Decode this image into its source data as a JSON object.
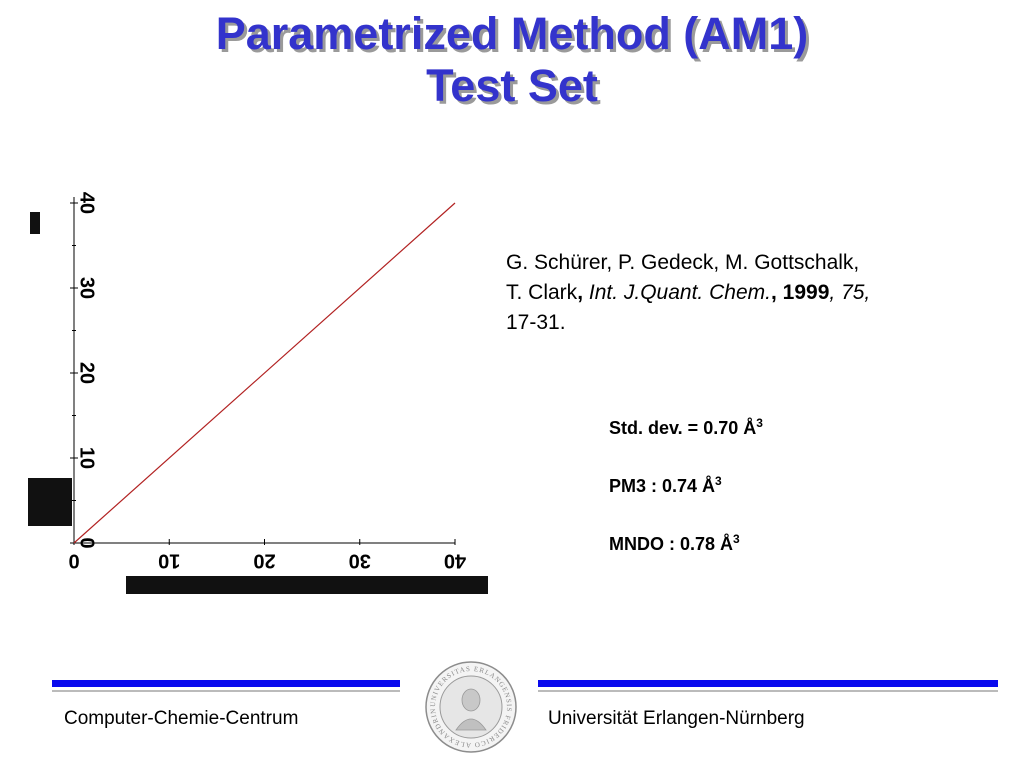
{
  "slide": {
    "title_line1": "Parametrized Method (AM1)",
    "title_line2": "Test Set"
  },
  "citation": {
    "authors_line1": "G. Schürer, P. Gedeck, M. Gottschalk,",
    "authors_line2_prefix": "T. Clark",
    "comma_bold": ",",
    "journal": "Int. J.Quant. Chem.",
    "comma_bold2": ",",
    "year": "1999",
    "comma_italic": ",",
    "volume": "75,",
    "pages": "17-31."
  },
  "stats": {
    "std_dev_label": "Std. dev. = 0.70 Å",
    "pm3_label": "PM3 : 0.74 Å",
    "mndo_label": "MNDO : 0.78 Å",
    "unit_exponent": "3"
  },
  "footer": {
    "left_text": "Computer-Chemie-Centrum",
    "right_text": "Universität Erlangen-Nürnberg",
    "seal_text": "UNIVERSITAS ERLANGENSIS FRIDERICO ALEXANDRINA",
    "bar_color": "#0a0aee"
  },
  "chart_data": {
    "type": "line",
    "x_ticks": [
      "0",
      "10",
      "20",
      "30",
      "40"
    ],
    "y_ticks": [
      "0",
      "10",
      "20",
      "30",
      "40"
    ],
    "xlim": [
      0,
      40
    ],
    "ylim": [
      0,
      40
    ],
    "series": [
      {
        "values": [
          [
            0,
            0
          ],
          [
            40,
            40
          ]
        ],
        "color": "#b22222"
      }
    ],
    "grid": false,
    "xlabel": "",
    "ylabel": ""
  }
}
